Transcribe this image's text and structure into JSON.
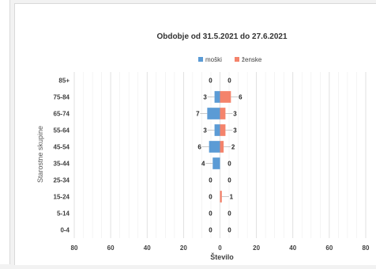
{
  "chart_data": {
    "type": "bar",
    "orientation": "horizontal-pyramid",
    "title": "Obdobje od 31.5.2021 do 27.6.2021",
    "xlabel": "Število",
    "ylabel": "Starostne skupine",
    "categories": [
      "85+",
      "75-84",
      "65-74",
      "55-64",
      "45-54",
      "35-44",
      "25-34",
      "15-24",
      "5-14",
      "0-4"
    ],
    "series": [
      {
        "name": "moški",
        "values": [
          0,
          3,
          7,
          3,
          6,
          4,
          0,
          0,
          0,
          0
        ],
        "color": "#5b9bd5",
        "side": "left"
      },
      {
        "name": "ženske",
        "values": [
          0,
          6,
          3,
          3,
          2,
          0,
          0,
          1,
          0,
          0
        ],
        "color": "#f4836b",
        "side": "right"
      }
    ],
    "xlim": [
      -80,
      80
    ],
    "xticks": [
      -80,
      -60,
      -40,
      -20,
      0,
      20,
      40,
      60,
      80
    ],
    "xtick_labels": [
      "80",
      "60",
      "40",
      "20",
      "0",
      "20",
      "40",
      "60",
      "80"
    ],
    "grid": true,
    "legend": "top-center"
  }
}
